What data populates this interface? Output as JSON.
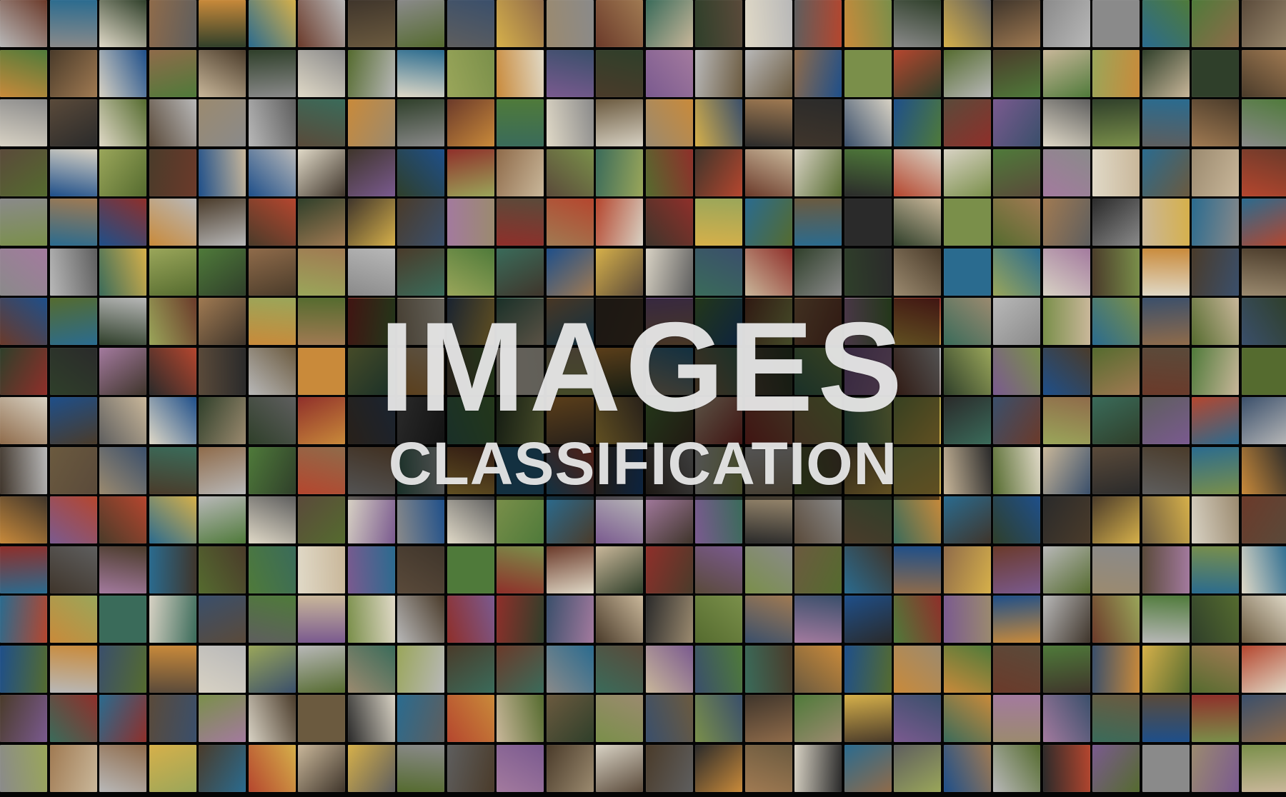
{
  "title": {
    "main": "IMAGES",
    "sub": "CLASSIFICATION"
  },
  "mosaic": {
    "columns": 26,
    "rows": 16,
    "palette": [
      "#4a3b2a",
      "#6b5a3f",
      "#2f3f2a",
      "#556b2f",
      "#7a8f4a",
      "#3a4f6b",
      "#1e4f8a",
      "#2a6b8f",
      "#8f6b4a",
      "#a07a52",
      "#c9b79a",
      "#d8d2c4",
      "#5e5e5e",
      "#8a8a8a",
      "#b8b8b8",
      "#2a2a2a",
      "#6b3a2a",
      "#8f2f2a",
      "#b5462e",
      "#c98a3a",
      "#d6b04a",
      "#9aa65a",
      "#4f7a3a",
      "#3a6b5a",
      "#7a5a8f",
      "#a37a9e",
      "#e0d9c7",
      "#5a4a3a",
      "#3f352b",
      "#9b8a6f"
    ]
  }
}
